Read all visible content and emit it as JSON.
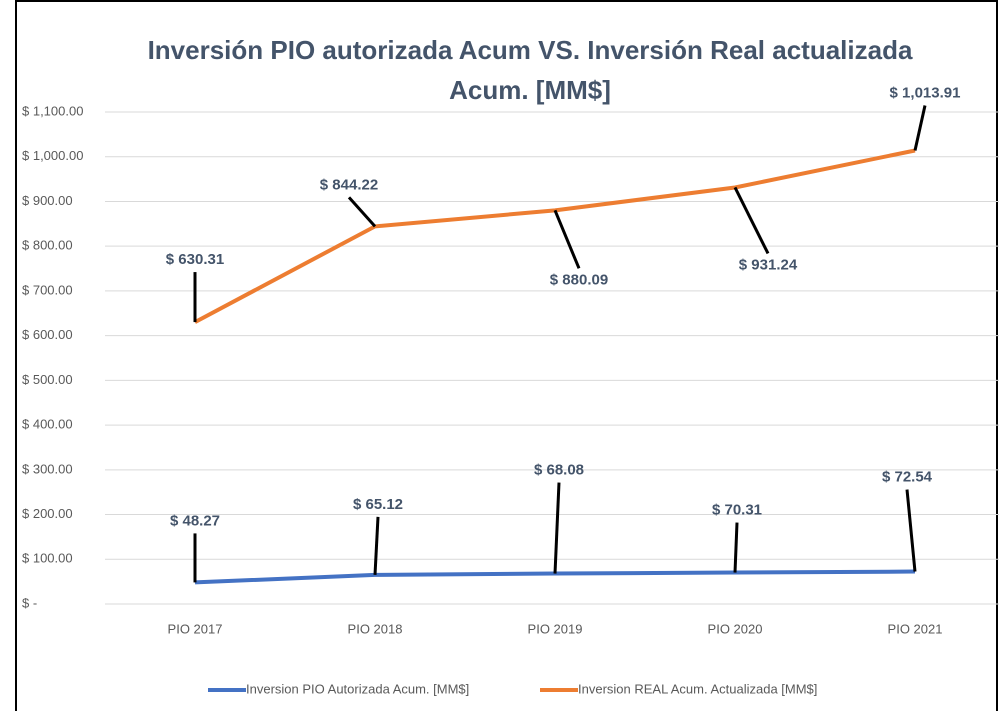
{
  "chart_data": {
    "type": "line",
    "title": "Inversión PIO autorizada Acum VS. Inversión Real actualizada Acum. [MM$]",
    "categories": [
      "PIO 2017",
      "PIO 2018",
      "PIO 2019",
      "PIO 2020",
      "PIO 2021"
    ],
    "series": [
      {
        "name": "Inversion PIO Autorizada Acum. [MM$]",
        "color": "#4472c4",
        "values": [
          48.27,
          65.12,
          68.08,
          70.31,
          72.54
        ],
        "value_labels": [
          "$ 48.27",
          "$ 65.12",
          "$ 68.08",
          "$ 70.31",
          "$ 72.54"
        ]
      },
      {
        "name": "Inversion REAL Acum. Actualizada [MM$]",
        "color": "#ed7d31",
        "values": [
          630.31,
          844.22,
          880.09,
          931.24,
          1013.91
        ],
        "value_labels": [
          "$ 630.31",
          "$ 844.22",
          "$ 880.09",
          "$ 931.24",
          "$ 1,013.91"
        ]
      }
    ],
    "ylim": [
      0,
      1100
    ],
    "yticks": [
      {
        "value": 0,
        "label": "$ -"
      },
      {
        "value": 100,
        "label": "$ 100.00"
      },
      {
        "value": 200,
        "label": "$ 200.00"
      },
      {
        "value": 300,
        "label": "$ 300.00"
      },
      {
        "value": 400,
        "label": "$ 400.00"
      },
      {
        "value": 500,
        "label": "$ 500.00"
      },
      {
        "value": 600,
        "label": "$ 600.00"
      },
      {
        "value": 700,
        "label": "$ 700.00"
      },
      {
        "value": 800,
        "label": "$ 800.00"
      },
      {
        "value": 900,
        "label": "$ 900.00"
      },
      {
        "value": 1000,
        "label": "$ 1,000.00"
      },
      {
        "value": 1100,
        "label": "$ 1,100.00"
      }
    ],
    "grid": true,
    "legend": "bottom"
  }
}
